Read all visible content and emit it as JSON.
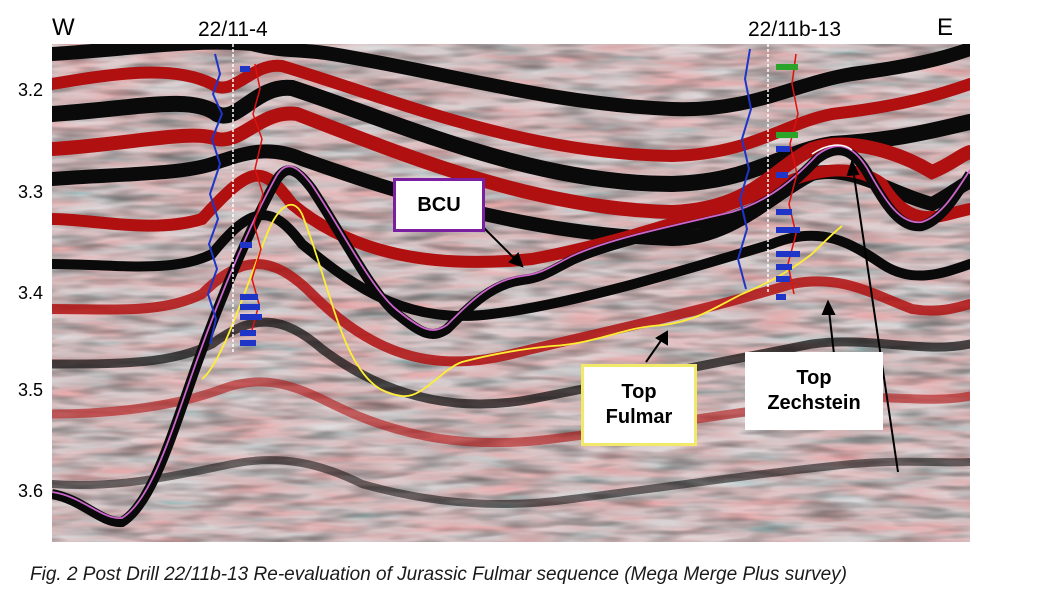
{
  "directions": {
    "west": "W",
    "east": "E"
  },
  "wells": [
    {
      "id": "w1",
      "name": "22/11-4"
    },
    {
      "id": "w2",
      "name": "22/11b-13"
    }
  ],
  "time_axis": {
    "ticks": [
      "3.2",
      "3.3",
      "3.4",
      "3.5",
      "3.6"
    ]
  },
  "horizons": [
    {
      "label": "BCU",
      "color": "#cc66cc",
      "box_color": "#7b1fa2"
    },
    {
      "label": "Top Fulmar",
      "color": "#ffee33",
      "box_color": "#f2e86a"
    },
    {
      "label": "Top Zechstein",
      "color": "#ffffff",
      "box_color": "#ffffff"
    }
  ],
  "callouts": {
    "bcu": "BCU",
    "top_fulmar_line1": "Top",
    "top_fulmar_line2": "Fulmar",
    "top_zechstein_line1": "Top",
    "top_zechstein_line2": "Zechstein"
  },
  "caption": "Fig. 2 Post Drill 22/11b-13 Re-evaluation of Jurassic Fulmar sequence (Mega Merge Plus survey)",
  "colors": {
    "seismic_positive": "#b01010",
    "seismic_negative": "#0a0a0a",
    "seismic_neutral": "#dfe4e6"
  }
}
